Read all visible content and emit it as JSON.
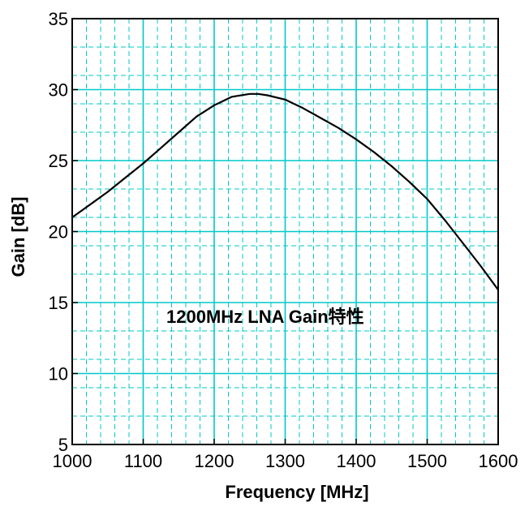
{
  "chart_data": {
    "type": "line",
    "title": "",
    "annotation": "1200MHz LNA Gain特性",
    "xlabel": "Frequency [MHz]",
    "ylabel": "Gain [dB]",
    "xlim": [
      1000,
      1600
    ],
    "ylim": [
      5,
      35
    ],
    "xticks": [
      "1000",
      "1100",
      "1200",
      "1300",
      "1400",
      "1500",
      "1600"
    ],
    "yticks": [
      "5",
      "10",
      "15",
      "20",
      "25",
      "30",
      "35"
    ],
    "grid": "major and minor",
    "series": [
      {
        "name": "Gain",
        "x": [
          1000,
          1025,
          1050,
          1075,
          1100,
          1125,
          1150,
          1175,
          1200,
          1225,
          1250,
          1262,
          1275,
          1300,
          1325,
          1350,
          1375,
          1400,
          1425,
          1450,
          1475,
          1500,
          1525,
          1550,
          1575,
          1600
        ],
        "y": [
          21.0,
          21.9,
          22.8,
          23.8,
          24.8,
          25.9,
          27.0,
          28.1,
          28.9,
          29.5,
          29.7,
          29.7,
          29.6,
          29.3,
          28.7,
          28.0,
          27.3,
          26.5,
          25.6,
          24.6,
          23.5,
          22.3,
          20.8,
          19.2,
          17.6,
          15.9
        ],
        "color": "#000000"
      }
    ],
    "colors": {
      "grid": "#00c8c8",
      "line": "#000000",
      "axes": "#000000"
    }
  }
}
